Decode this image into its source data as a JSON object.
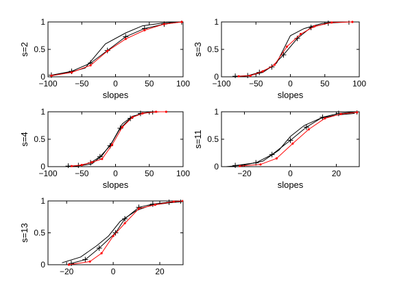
{
  "colors": {
    "black": "#000000",
    "red": "#ff0000",
    "axes": "#000000",
    "background": "#ffffff"
  },
  "chart_data": [
    {
      "type": "line",
      "ylabel": "s=2",
      "xlabel": "slopes",
      "xlim": [
        -100,
        100
      ],
      "ylim": [
        0,
        1
      ],
      "xticks": [
        -100,
        -50,
        0,
        50,
        100
      ],
      "yticks": [
        0,
        0.5,
        1
      ],
      "xtick_labels": [
        "−100",
        "−50",
        "0",
        "50",
        "100"
      ],
      "ytick_labels": [
        "0",
        "0.5",
        "1"
      ],
      "series": [
        {
          "color": "black",
          "marker": "none",
          "points": [
            [
              -95,
              0.02
            ],
            [
              -68,
              0.08
            ],
            [
              -45,
              0.16
            ],
            [
              -15,
              0.6
            ],
            [
              15,
              0.8
            ],
            [
              40,
              0.93
            ],
            [
              70,
              0.98
            ],
            [
              97,
              1.0
            ]
          ]
        },
        {
          "color": "black",
          "marker": "plus",
          "points": [
            [
              -95,
              0.03
            ],
            [
              -65,
              0.1
            ],
            [
              -37,
              0.25
            ],
            [
              -12,
              0.48
            ],
            [
              15,
              0.73
            ],
            [
              43,
              0.88
            ],
            [
              72,
              0.96
            ],
            [
              98,
              1.0
            ]
          ]
        },
        {
          "color": "red",
          "marker": "dot",
          "points": [
            [
              -95,
              0.02
            ],
            [
              -65,
              0.08
            ],
            [
              -37,
              0.21
            ],
            [
              -12,
              0.47
            ],
            [
              15,
              0.69
            ],
            [
              43,
              0.85
            ],
            [
              72,
              0.96
            ],
            [
              98,
              1.0
            ]
          ]
        }
      ]
    },
    {
      "type": "line",
      "ylabel": "s=3",
      "xlabel": "slopes",
      "xlim": [
        -100,
        100
      ],
      "ylim": [
        0,
        1
      ],
      "xticks": [
        -100,
        -50,
        0,
        50,
        100
      ],
      "yticks": [
        0,
        0.5,
        1
      ],
      "xtick_labels": [
        "−100",
        "−50",
        "0",
        "50",
        "100"
      ],
      "ytick_labels": [
        "0",
        "0.5",
        "1"
      ],
      "series": [
        {
          "color": "black",
          "marker": "none",
          "points": [
            [
              -80,
              0.0
            ],
            [
              -60,
              0.02
            ],
            [
              -40,
              0.08
            ],
            [
              -20,
              0.25
            ],
            [
              0,
              0.75
            ],
            [
              20,
              0.88
            ],
            [
              45,
              0.97
            ],
            [
              65,
              1.0
            ]
          ]
        },
        {
          "color": "black",
          "marker": "plus",
          "points": [
            [
              -80,
              0.01
            ],
            [
              -62,
              0.02
            ],
            [
              -45,
              0.08
            ],
            [
              -27,
              0.18
            ],
            [
              -10,
              0.4
            ],
            [
              10,
              0.7
            ],
            [
              30,
              0.9
            ],
            [
              55,
              0.98
            ],
            [
              85,
              1.0
            ]
          ]
        },
        {
          "color": "red",
          "marker": "dot",
          "points": [
            [
              -75,
              0.01
            ],
            [
              -58,
              0.02
            ],
            [
              -40,
              0.1
            ],
            [
              -23,
              0.22
            ],
            [
              -5,
              0.55
            ],
            [
              15,
              0.78
            ],
            [
              35,
              0.92
            ],
            [
              60,
              0.99
            ],
            [
              90,
              1.0
            ]
          ]
        }
      ]
    },
    {
      "type": "line",
      "ylabel": "s=4",
      "xlabel": "slopes",
      "xlim": [
        -100,
        100
      ],
      "ylim": [
        0,
        1
      ],
      "xticks": [
        -100,
        -50,
        0,
        50,
        100
      ],
      "yticks": [
        0,
        0.5,
        1
      ],
      "xtick_labels": [
        "−100",
        "−50",
        "0",
        "50",
        "100"
      ],
      "ytick_labels": [
        "0",
        "0.5",
        "1"
      ],
      "series": [
        {
          "color": "black",
          "marker": "none",
          "points": [
            [
              -70,
              0.0
            ],
            [
              -50,
              0.02
            ],
            [
              -35,
              0.05
            ],
            [
              -20,
              0.2
            ],
            [
              -5,
              0.45
            ],
            [
              10,
              0.78
            ],
            [
              25,
              0.92
            ],
            [
              45,
              0.98
            ],
            [
              65,
              1.0
            ]
          ]
        },
        {
          "color": "black",
          "marker": "plus",
          "points": [
            [
              -70,
              0.01
            ],
            [
              -55,
              0.02
            ],
            [
              -37,
              0.07
            ],
            [
              -23,
              0.18
            ],
            [
              -8,
              0.38
            ],
            [
              7,
              0.7
            ],
            [
              22,
              0.88
            ],
            [
              37,
              0.97
            ],
            [
              55,
              1.0
            ]
          ]
        },
        {
          "color": "red",
          "marker": "dot",
          "points": [
            [
              -65,
              0.01
            ],
            [
              -50,
              0.03
            ],
            [
              -35,
              0.08
            ],
            [
              -20,
              0.14
            ],
            [
              -5,
              0.4
            ],
            [
              10,
              0.72
            ],
            [
              25,
              0.9
            ],
            [
              40,
              0.97
            ],
            [
              60,
              1.0
            ],
            [
              75,
              1.0
            ]
          ]
        }
      ]
    },
    {
      "type": "line",
      "ylabel": "s=11",
      "xlabel": "slopes",
      "xlim": [
        -30,
        30
      ],
      "ylim": [
        0,
        1
      ],
      "xticks": [
        -20,
        0,
        20
      ],
      "yticks": [
        0,
        0.5,
        1
      ],
      "xtick_labels": [
        "−20",
        "0",
        "20"
      ],
      "ytick_labels": [
        "0",
        "0.5",
        "1"
      ],
      "series": [
        {
          "color": "black",
          "marker": "none",
          "points": [
            [
              -28,
              0.0
            ],
            [
              -20,
              0.03
            ],
            [
              -12,
              0.1
            ],
            [
              -5,
              0.3
            ],
            [
              0,
              0.55
            ],
            [
              6,
              0.75
            ],
            [
              13,
              0.88
            ],
            [
              20,
              0.94
            ],
            [
              28,
              0.97
            ]
          ]
        },
        {
          "color": "black",
          "marker": "plus",
          "points": [
            [
              -24,
              0.02
            ],
            [
              -15,
              0.07
            ],
            [
              -8,
              0.22
            ],
            [
              0,
              0.48
            ],
            [
              7,
              0.72
            ],
            [
              14,
              0.9
            ],
            [
              21,
              0.97
            ],
            [
              29,
              1.0
            ]
          ]
        },
        {
          "color": "red",
          "marker": "dot",
          "points": [
            [
              -22,
              0.01
            ],
            [
              -13,
              0.04
            ],
            [
              -6,
              0.15
            ],
            [
              1,
              0.42
            ],
            [
              8,
              0.68
            ],
            [
              15,
              0.88
            ],
            [
              22,
              0.96
            ],
            [
              29,
              0.99
            ]
          ]
        }
      ]
    },
    {
      "type": "line",
      "ylabel": "s=13",
      "xlabel": "",
      "xlim": [
        -28,
        30
      ],
      "ylim": [
        0,
        1
      ],
      "xticks": [
        -20,
        0,
        20
      ],
      "yticks": [
        0,
        0.5,
        1
      ],
      "xtick_labels": [
        "−20",
        "0",
        "20"
      ],
      "ytick_labels": [
        "0",
        "0.5",
        "1"
      ],
      "series": [
        {
          "color": "black",
          "marker": "none",
          "points": [
            [
              -22,
              0.03
            ],
            [
              -14,
              0.12
            ],
            [
              -7,
              0.3
            ],
            [
              -2,
              0.45
            ],
            [
              3,
              0.68
            ],
            [
              10,
              0.85
            ],
            [
              16,
              0.93
            ],
            [
              24,
              0.97
            ],
            [
              30,
              0.99
            ]
          ]
        },
        {
          "color": "black",
          "marker": "plus",
          "points": [
            [
              -18,
              0.02
            ],
            [
              -12,
              0.08
            ],
            [
              -6,
              0.26
            ],
            [
              1,
              0.5
            ],
            [
              5,
              0.72
            ],
            [
              11,
              0.9
            ],
            [
              17,
              0.95
            ],
            [
              24,
              0.98
            ],
            [
              29,
              1.0
            ]
          ]
        },
        {
          "color": "red",
          "marker": "dot",
          "points": [
            [
              -19,
              0.0
            ],
            [
              -10,
              0.05
            ],
            [
              -5,
              0.18
            ],
            [
              0,
              0.45
            ],
            [
              5,
              0.65
            ],
            [
              11,
              0.88
            ],
            [
              18,
              0.94
            ],
            [
              26,
              0.99
            ],
            [
              30,
              1.0
            ]
          ]
        }
      ]
    }
  ]
}
